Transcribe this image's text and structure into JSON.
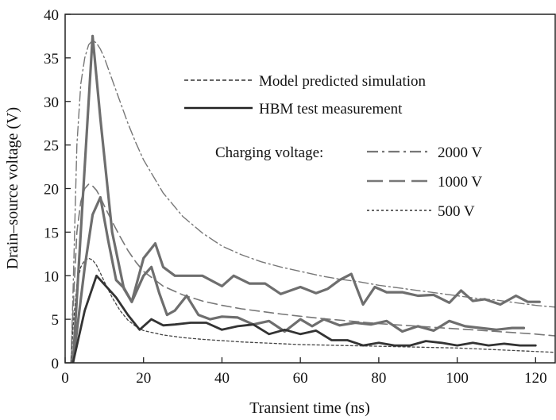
{
  "chart_data": {
    "type": "line",
    "xlabel": "Transient time (ns)",
    "ylabel": "Drain–source voltage (V)",
    "xlim": [
      0,
      125
    ],
    "ylim": [
      0,
      40
    ],
    "x_ticks": [
      "0",
      "20",
      "40",
      "60",
      "80",
      "100",
      "120"
    ],
    "y_ticks": [
      "0",
      "5",
      "10",
      "15",
      "20",
      "25",
      "30",
      "35",
      "40"
    ],
    "grid": false,
    "legend": {
      "placement": "top-right",
      "model_label": "Model predicted simulation",
      "measurement_label": "HBM test measurement",
      "charging_title": "Charging voltage:",
      "entries": [
        "2000 V",
        "1000 V",
        "500 V"
      ]
    },
    "series": [
      {
        "name": "2000 V",
        "kind": "simulation",
        "x": [
          1.5,
          2,
          3,
          4,
          5,
          6,
          7,
          8,
          9,
          10,
          12,
          14,
          16,
          18,
          20,
          25,
          30,
          35,
          40,
          45,
          50,
          55,
          60,
          65,
          70,
          75,
          80,
          85,
          90,
          95,
          100,
          105,
          110,
          115,
          120,
          125
        ],
        "y": [
          0,
          8,
          25,
          32,
          35,
          36.5,
          37,
          36.7,
          36,
          35,
          32.5,
          30,
          27.5,
          25.3,
          23.3,
          19.5,
          16.8,
          14.9,
          13.4,
          12.4,
          11.6,
          11,
          10.5,
          10,
          9.6,
          9.3,
          8.9,
          8.6,
          8.3,
          8,
          7.7,
          7.4,
          7.2,
          6.9,
          6.6,
          6.4
        ]
      },
      {
        "name": "1000 V",
        "kind": "simulation",
        "x": [
          1.5,
          2,
          3,
          4,
          5,
          6,
          7,
          8,
          9,
          10,
          12,
          14,
          16,
          18,
          20,
          25,
          30,
          35,
          40,
          45,
          50,
          55,
          60,
          65,
          70,
          75,
          80,
          85,
          90,
          95,
          100,
          105,
          110,
          115,
          120,
          125
        ],
        "y": [
          0,
          6,
          15,
          18.5,
          20,
          20.5,
          20.3,
          19.8,
          19,
          18,
          16.2,
          14.5,
          12.9,
          11.6,
          10.5,
          8.8,
          7.8,
          7.1,
          6.6,
          6.2,
          5.9,
          5.6,
          5.35,
          5.1,
          4.9,
          4.7,
          4.5,
          4.35,
          4.2,
          4.05,
          3.9,
          3.75,
          3.6,
          3.45,
          3.3,
          3.1
        ]
      },
      {
        "name": "500 V",
        "kind": "simulation",
        "x": [
          1.5,
          2,
          3,
          4,
          5,
          6,
          7,
          8,
          9,
          10,
          12,
          14,
          16,
          18,
          20,
          25,
          30,
          35,
          40,
          45,
          50,
          55,
          60,
          65,
          70,
          75,
          80,
          85,
          90,
          95,
          100,
          105,
          110,
          115,
          120,
          125
        ],
        "y": [
          0,
          4,
          9,
          11,
          11.8,
          12,
          11.8,
          11.2,
          10.3,
          9.3,
          7.5,
          6,
          4.9,
          4.2,
          3.7,
          3.2,
          2.9,
          2.7,
          2.55,
          2.4,
          2.3,
          2.2,
          2.1,
          2.05,
          2,
          1.95,
          1.9,
          1.85,
          1.8,
          1.75,
          1.7,
          1.6,
          1.5,
          1.4,
          1.3,
          1.2
        ]
      },
      {
        "name": "2000 V",
        "kind": "measurement",
        "x": [
          2,
          4,
          6,
          7,
          9,
          12,
          15,
          17,
          20,
          23,
          25,
          28,
          31,
          35,
          40,
          43,
          47,
          51,
          55,
          60,
          64,
          67,
          70,
          73,
          76,
          79,
          82,
          86,
          90,
          94,
          98,
          101,
          104,
          107,
          111,
          115,
          118,
          121
        ],
        "y": [
          0,
          15,
          30,
          37.5,
          28,
          15,
          8.5,
          7,
          12,
          13.7,
          11,
          10,
          10,
          10,
          8.8,
          10,
          9.1,
          9.1,
          7.9,
          8.7,
          8,
          8.5,
          9.5,
          10.2,
          6.7,
          8.7,
          8.1,
          8.1,
          7.7,
          7.8,
          6.9,
          8.3,
          7.1,
          7.3,
          6.7,
          7.7,
          7,
          7
        ]
      },
      {
        "name": "1000 V",
        "kind": "measurement",
        "x": [
          2,
          5,
          7,
          9,
          11,
          13,
          15,
          17,
          20,
          22,
          24,
          26,
          28,
          31,
          34,
          37,
          40,
          44,
          48,
          52,
          56,
          60,
          63,
          66,
          70,
          74,
          78,
          82,
          86,
          90,
          94,
          98,
          102,
          106,
          110,
          114,
          117
        ],
        "y": [
          0,
          11,
          17,
          19,
          14,
          9.5,
          8.6,
          7,
          10,
          11,
          8,
          5.5,
          6,
          7.7,
          5.5,
          5,
          5.3,
          5.2,
          4.4,
          4.8,
          3.6,
          5,
          4.2,
          5,
          4.3,
          4.6,
          4.4,
          4.8,
          3.6,
          4.2,
          3.7,
          4.8,
          4.2,
          4,
          3.8,
          4,
          4
        ]
      },
      {
        "name": "500 V",
        "kind": "measurement",
        "x": [
          2,
          5,
          8,
          10,
          13,
          16,
          19,
          22,
          25,
          28,
          32,
          36,
          40,
          44,
          48,
          52,
          56,
          60,
          64,
          68,
          72,
          76,
          80,
          84,
          88,
          92,
          96,
          100,
          104,
          108,
          112,
          116,
          120
        ],
        "y": [
          0,
          6,
          10,
          9,
          7.5,
          5.5,
          3.8,
          5,
          4.3,
          4.4,
          4.6,
          4.6,
          3.8,
          4.2,
          4.4,
          3.3,
          3.8,
          3.3,
          3.7,
          2.6,
          2.6,
          2,
          2.3,
          2,
          2,
          2.5,
          2.3,
          2,
          2.3,
          2,
          2.2,
          2,
          2
        ]
      }
    ]
  }
}
